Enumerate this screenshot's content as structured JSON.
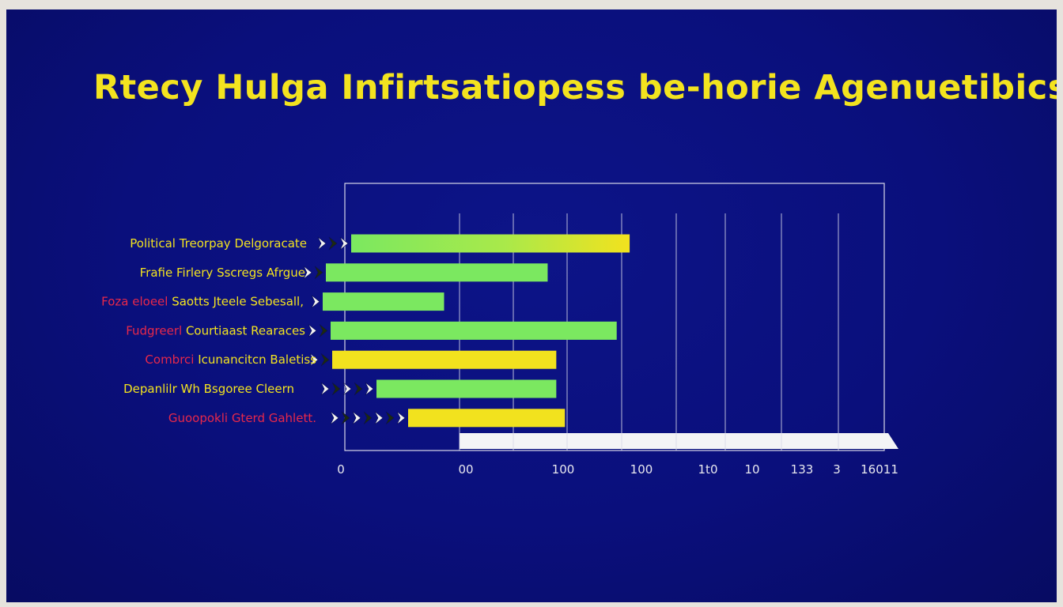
{
  "title": "Rtecy Hulga Infirtsatiopess be-horie Agenuetibics",
  "colors": {
    "background": "#0a0f7c",
    "title": "#f3e31f",
    "bar_green": "#7be860",
    "bar_yellow": "#f2e21e",
    "label_yellow": "#f3e31f",
    "label_red": "#e8284a",
    "frame": "#d8d8e8"
  },
  "chart_data": {
    "type": "bar",
    "orientation": "horizontal",
    "title": "Rtecy Hulga Infirtsatiopess be-horie Agenuetibics",
    "xlabel": "",
    "ylabel": "",
    "grid": true,
    "x_tick_labels": [
      "0",
      "00",
      "100",
      "100",
      "1t0",
      "10",
      "133",
      "3",
      "16011"
    ],
    "categories": [
      {
        "prefix": "",
        "label": "Political Treorpay Delgoracate",
        "value": 66,
        "color": "gradient",
        "label_color": "yellow"
      },
      {
        "prefix": "",
        "label": "Frafie Firlery Sscregs Afrgue",
        "value": 47,
        "color": "green",
        "label_color": "yellow"
      },
      {
        "prefix": "Foza eloeel",
        "label": "Saotts Jteele Sebesall,",
        "value": 23,
        "color": "green",
        "label_color": "yellow"
      },
      {
        "prefix": "Fudgreerl",
        "label": "Courtiaast Rearaces",
        "value": 63,
        "color": "green",
        "label_color": "yellow"
      },
      {
        "prefix": "Combrci",
        "label": "Icunancitcn Baletiss",
        "value": 49,
        "color": "yellow",
        "label_color": "yellow"
      },
      {
        "prefix": "",
        "label": "Depanlilr Wh Bsgoree Cleern",
        "value": 49,
        "color": "green",
        "label_color": "yellow"
      },
      {
        "prefix": "Guoopokli",
        "label": "Gterd Gahlett.",
        "value": 51,
        "color": "yellow",
        "label_color": "red"
      }
    ],
    "xlim": [
      0,
      125
    ]
  }
}
